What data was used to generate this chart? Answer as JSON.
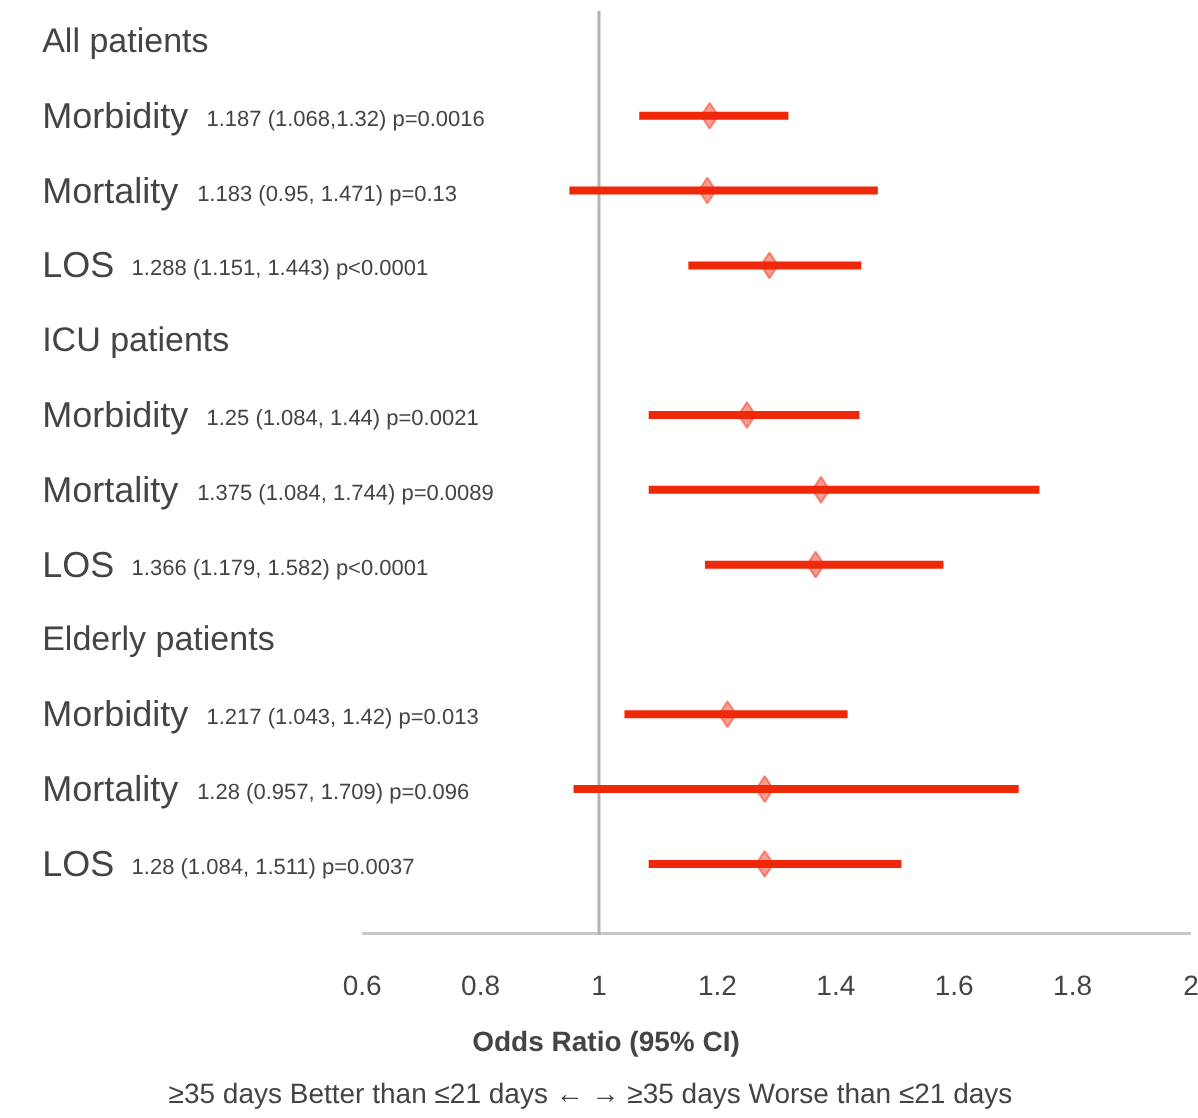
{
  "chart_data": {
    "type": "scatter",
    "orientation": "horizontal",
    "categories": [
      "All patients",
      "Morbidity 1.187 (1.068,1.32) p=0.0016",
      "Mortality 1.183 (0.95, 1.471) p=0.13",
      "LOS 1.288 (1.151, 1.443) p<0.0001",
      "ICU patients",
      "Morbidity 1.25 (1.084, 1.44) p=0.0021",
      "Mortality 1.375 (1.084, 1.744) p=0.0089",
      "LOS 1.366 (1.179, 1.582) p<0.0001",
      "Elderly patients",
      "Morbidity 1.217 (1.043, 1.42) p=0.013",
      "Mortality 1.28 (0.957, 1.709) p=0.096",
      "LOS 1.28 (1.084, 1.511) p=0.0037"
    ],
    "values": [
      null,
      1.187,
      1.183,
      1.288,
      null,
      1.25,
      1.375,
      1.366,
      null,
      1.217,
      1.28,
      1.28
    ],
    "errors": [
      null,
      [
        1.068,
        1.32
      ],
      [
        0.95,
        1.471
      ],
      [
        1.151,
        1.443
      ],
      null,
      [
        1.084,
        1.44
      ],
      [
        1.084,
        1.744
      ],
      [
        1.179,
        1.582
      ],
      null,
      [
        1.043,
        1.42
      ],
      [
        0.957,
        1.709
      ],
      [
        1.084,
        1.511
      ]
    ],
    "color": "#f0280a",
    "marker": "diamond",
    "xlim": [
      0.6,
      2
    ],
    "xticks": [
      0.6,
      0.8,
      1,
      1.2,
      1.4,
      1.6,
      1.8,
      2
    ],
    "xlabel": "Odds Ratio (95% CI)",
    "ref_lines": [
      {
        "axis": "x",
        "value": 1,
        "color": "#b4b4b4"
      }
    ],
    "annotations": [
      "≥35 days Better than ≤21 days  ←   →  ≥35 days Worse than ≤21 days"
    ]
  }
}
